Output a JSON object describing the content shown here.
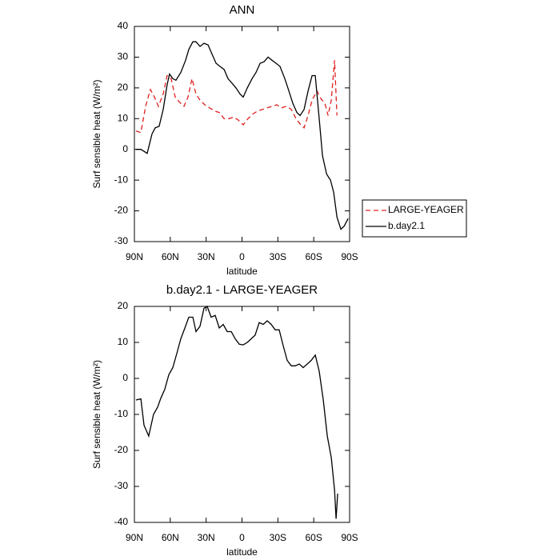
{
  "chart_data": [
    {
      "type": "line",
      "title": "ANN",
      "xlabel": "latitude",
      "ylabel": "Surf sensible heat (W/m²)",
      "xlim": [
        90,
        -90
      ],
      "ylim": [
        -30,
        40
      ],
      "xticks": [
        {
          "value": 90,
          "label": "90N"
        },
        {
          "value": 60,
          "label": "60N"
        },
        {
          "value": 30,
          "label": "30N"
        },
        0,
        {
          "value": -30,
          "label": "30S"
        },
        {
          "value": -60,
          "label": "60S"
        },
        {
          "value": -90,
          "label": "90S"
        }
      ],
      "yticks": [
        -30,
        -20,
        -10,
        0,
        10,
        20,
        30,
        40
      ],
      "legend": "right",
      "series": [
        {
          "name": "LARGE-YEAGER",
          "color": "#e02020",
          "dash": "dashed",
          "x": [
            88.7,
            84.6,
            80.6,
            76.6,
            73.2,
            69.9,
            65.9,
            62.6,
            59.3,
            55.9,
            52.6,
            48.5,
            45.2,
            41.8,
            38.5,
            35.1,
            31.1,
            27.1,
            23.1,
            19.0,
            15.0,
            11.0,
            7.0,
            3.0,
            -1.0,
            -5.0,
            -9.0,
            -13.1,
            -17.1,
            -21.1,
            -25.1,
            -29.1,
            -33.2,
            -37.2,
            -41.2,
            -45.2,
            -49.2,
            -51.9,
            -55.3,
            -58.6,
            -62.7,
            -66.0,
            -69.3,
            -72.0,
            -74.7,
            -77.4,
            -79.4
          ],
          "values": [
            6,
            5.5,
            14,
            19.5,
            17,
            14,
            18,
            24,
            23,
            17,
            15.5,
            14,
            17,
            23,
            18,
            16,
            14.5,
            13.5,
            12.5,
            12,
            10,
            10,
            10.5,
            9.5,
            8,
            10,
            11.5,
            12.5,
            13,
            13.5,
            14,
            14.5,
            13.5,
            14,
            13,
            10,
            8,
            7,
            11,
            16,
            19,
            16.5,
            15,
            11,
            16,
            29,
            11
          ]
        },
        {
          "name": "b.day2.1",
          "color": "#000000",
          "dash": "solid",
          "x": [
            88.7,
            84.6,
            79.3,
            75.3,
            72.6,
            69.3,
            65.9,
            62.6,
            60.6,
            57.9,
            55.3,
            51.2,
            47.2,
            44.5,
            41.1,
            38.5,
            35.1,
            31.8,
            28.4,
            25.1,
            21.7,
            18.4,
            15.0,
            11.7,
            8.3,
            5.0,
            1.7,
            -1.0,
            -4.4,
            -8.4,
            -11.7,
            -15.1,
            -18.4,
            -21.8,
            -25.1,
            -28.5,
            -31.8,
            -35.8,
            -39.2,
            -42.5,
            -45.9,
            -48.6,
            -51.9,
            -55.3,
            -58.6,
            -61.3,
            -64.6,
            -67.3,
            -70.7,
            -74.0,
            -76.7,
            -79.4,
            -82.7,
            -85.4,
            -88.8
          ],
          "values": [
            0,
            0,
            -1.3,
            5,
            7,
            7.5,
            13,
            21,
            24.5,
            23,
            22.5,
            25,
            29,
            32.5,
            35,
            35,
            33.5,
            34.5,
            34,
            31,
            28,
            27,
            26,
            23,
            21.5,
            20,
            18,
            17,
            20,
            23,
            25,
            28,
            28.5,
            30,
            29,
            28,
            27,
            23,
            19,
            15,
            12,
            11,
            13,
            19,
            24,
            24,
            10,
            -2,
            -8,
            -10,
            -14,
            -22,
            -26,
            -25,
            -22.5
          ]
        }
      ]
    },
    {
      "type": "line",
      "title": "b.day2.1 - LARGE-YEAGER",
      "xlabel": "latitude",
      "ylabel": "Surf sensible heat (W/m²)",
      "xlim": [
        90,
        -90
      ],
      "ylim": [
        -40,
        20
      ],
      "xticks": [
        {
          "value": 90,
          "label": "90N"
        },
        {
          "value": 60,
          "label": "60N"
        },
        {
          "value": 30,
          "label": "30N"
        },
        0,
        {
          "value": -30,
          "label": "30S"
        },
        {
          "value": -60,
          "label": "60S"
        },
        {
          "value": -90,
          "label": "90S"
        }
      ],
      "yticks": [
        -40,
        -30,
        -20,
        -10,
        0,
        10,
        20
      ],
      "series": [
        {
          "color": "#000000",
          "dash": "solid",
          "x": [
            88.7,
            84.6,
            82.0,
            78.0,
            74.0,
            70.6,
            67.9,
            64.6,
            61.2,
            57.9,
            54.5,
            51.2,
            47.8,
            44.5,
            41.1,
            38.5,
            35.1,
            31.8,
            29.1,
            25.8,
            22.4,
            19.0,
            15.7,
            12.4,
            9.0,
            5.7,
            2.3,
            -1.0,
            -4.4,
            -7.7,
            -11.0,
            -14.4,
            -17.7,
            -21.1,
            -24.4,
            -27.8,
            -31.1,
            -34.5,
            -37.8,
            -41.2,
            -44.5,
            -47.9,
            -51.2,
            -54.6,
            -57.9,
            -61.3,
            -64.6,
            -68.0,
            -71.3,
            -74.7,
            -77.4,
            -78.7,
            -80.0
          ],
          "values": [
            -6,
            -5.7,
            -13,
            -16,
            -10,
            -8,
            -5.5,
            -3,
            1,
            3,
            7,
            11,
            14,
            17,
            17,
            13,
            14.5,
            19.5,
            20,
            17,
            17.5,
            14,
            15,
            13,
            13,
            11,
            9.5,
            9.3,
            10,
            11,
            12,
            15.5,
            15,
            16,
            15,
            13.5,
            13.5,
            9,
            5,
            3.5,
            3.5,
            4,
            3,
            4,
            5,
            6.5,
            2,
            -6,
            -16,
            -22,
            -31,
            -39,
            -32
          ]
        }
      ]
    }
  ]
}
